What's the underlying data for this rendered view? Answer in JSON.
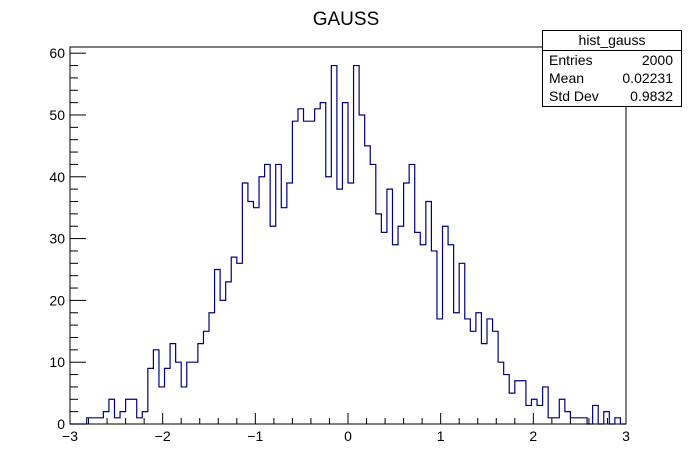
{
  "chart_data": {
    "type": "histogram",
    "title": "GAUSS",
    "xlim": [
      -3,
      3
    ],
    "ylim": [
      0,
      61
    ],
    "x_ticks": [
      -3,
      -2,
      -1,
      0,
      1,
      2,
      3
    ],
    "y_ticks": [
      0,
      10,
      20,
      30,
      40,
      50,
      60
    ],
    "bin_width": 0.06,
    "bin_start": -3,
    "counts": [
      0,
      0,
      0,
      1,
      1,
      1,
      2,
      4,
      1,
      2,
      4,
      4,
      1,
      2,
      9,
      12,
      6,
      9,
      13,
      10,
      6,
      10,
      10,
      13,
      15,
      18,
      25,
      20,
      23,
      27,
      26,
      39,
      36,
      35,
      40,
      42,
      32,
      42,
      35,
      39,
      49,
      51,
      49,
      49,
      51,
      52,
      40,
      58,
      38,
      52,
      39,
      58,
      50,
      45,
      42,
      34,
      31,
      38,
      29,
      32,
      39,
      42,
      31,
      29,
      36,
      28,
      17,
      32,
      29,
      18,
      26,
      17,
      15,
      18,
      13,
      17,
      15,
      10,
      8,
      5,
      7,
      7,
      3,
      4,
      3,
      6,
      1,
      1,
      4,
      2,
      1,
      1,
      1,
      0,
      3,
      0,
      2,
      0,
      1,
      0
    ],
    "line_color": "#000080",
    "stats_box": {
      "title": "hist_gauss",
      "rows": [
        {
          "label": "Entries",
          "value": "2000"
        },
        {
          "label": "Mean",
          "value": "0.02231"
        },
        {
          "label": "Std Dev",
          "value": "0.9832"
        }
      ]
    }
  }
}
